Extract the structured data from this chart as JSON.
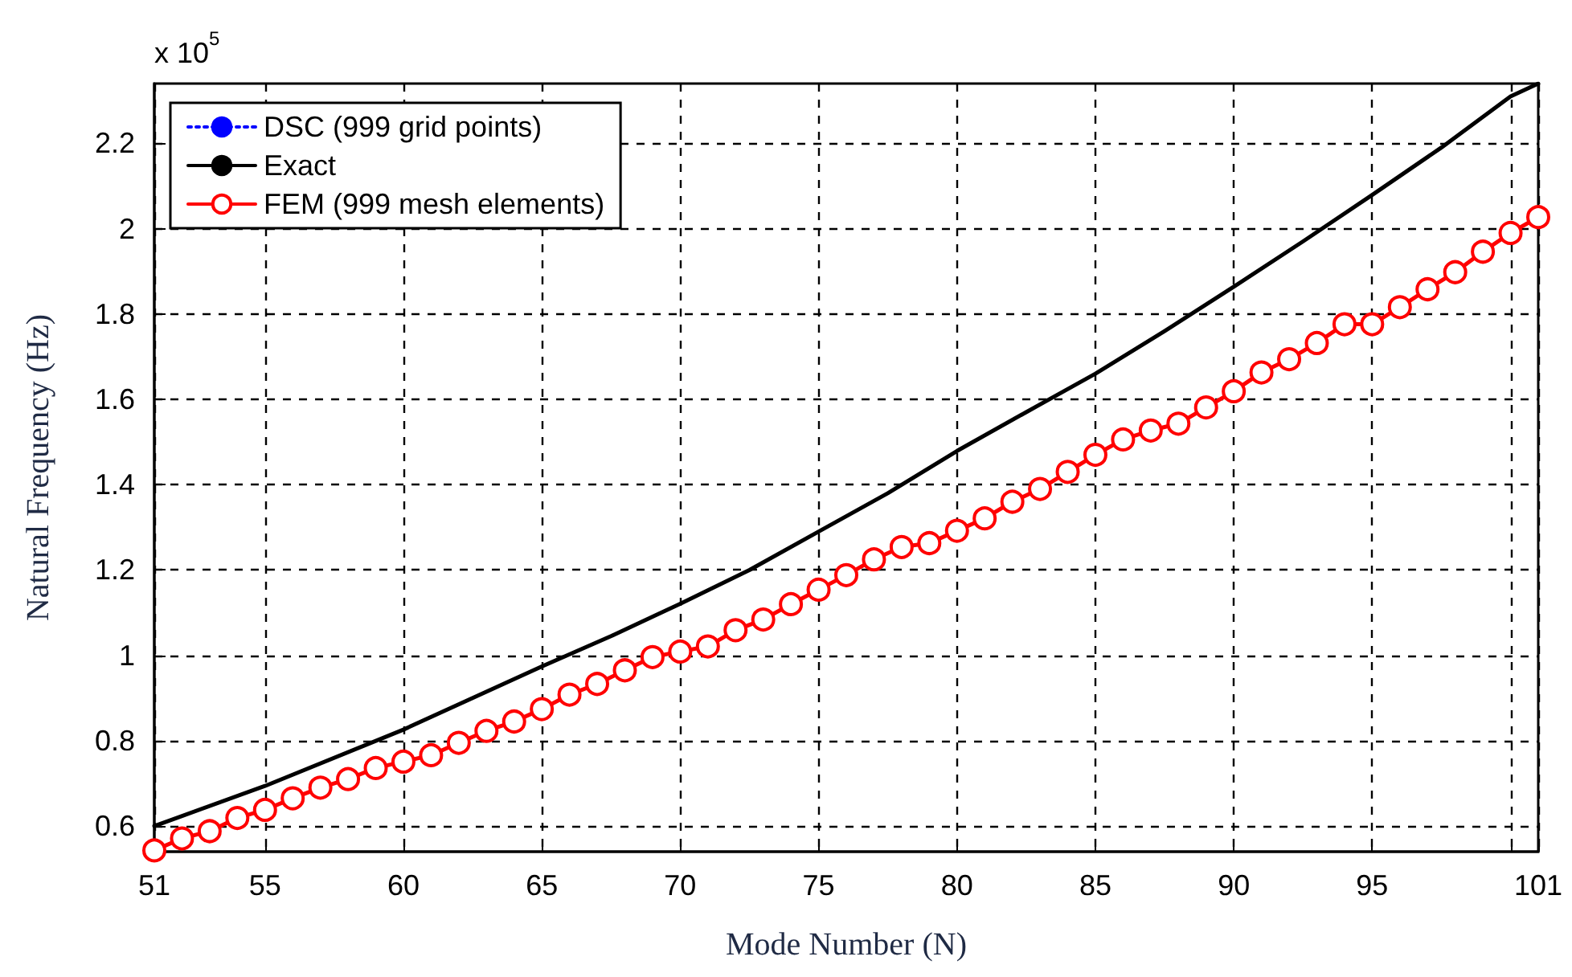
{
  "chart_data": {
    "type": "line",
    "xlabel": "Mode Number (N)",
    "ylabel": "Natural Frequency (Hz)",
    "annotations": [
      "x 10$^{5}$"
    ],
    "x": [
      51,
      52,
      53,
      54,
      55,
      56,
      57,
      58,
      59,
      60,
      61,
      62,
      63,
      64,
      65,
      66,
      67,
      68,
      69,
      70,
      71,
      72,
      73,
      74,
      75,
      76,
      77,
      78,
      79,
      80,
      81,
      82,
      83,
      84,
      85,
      86,
      87,
      88,
      89,
      90,
      91,
      92,
      93,
      94,
      95,
      96,
      97,
      98,
      99,
      100,
      101
    ],
    "series": [
      {
        "name": "DSC (999 grid points)",
        "color": "#0000ff",
        "line_style": "dotted",
        "marker": "none",
        "values": [
          null,
          null,
          null,
          null,
          null,
          null,
          null,
          null,
          null,
          null,
          null,
          null,
          null,
          null,
          null,
          null,
          null,
          null,
          null,
          null,
          null,
          null,
          null,
          null,
          null,
          null,
          null,
          null,
          null,
          null,
          null,
          null,
          null,
          null,
          null,
          null,
          null,
          null,
          null,
          null,
          null,
          null,
          null,
          null,
          null,
          null,
          null,
          null,
          null,
          null,
          null
        ]
      },
      {
        "name": "Exact",
        "color": "#000000",
        "line_style": "solid",
        "marker": "none",
        "x": [
          51,
          55,
          60,
          65,
          67.5,
          70,
          72.5,
          75,
          77.5,
          80,
          82.5,
          85,
          87.5,
          90,
          92.5,
          95,
          97.5,
          100,
          101
        ],
        "values": [
          0.6,
          0.694,
          0.826,
          0.974,
          1.045,
          1.121,
          1.2,
          1.29,
          1.38,
          1.479,
          1.57,
          1.66,
          1.76,
          1.864,
          1.97,
          2.079,
          2.19,
          2.31,
          2.34
        ]
      },
      {
        "name": "FEM (999 mesh elements)",
        "color": "#ff0000",
        "line_style": "solid",
        "marker": "circle",
        "values": [
          0.543,
          0.571,
          0.588,
          0.619,
          0.638,
          0.665,
          0.69,
          0.71,
          0.736,
          0.751,
          0.766,
          0.795,
          0.823,
          0.845,
          0.874,
          0.908,
          0.933,
          0.965,
          0.996,
          1.009,
          1.021,
          1.059,
          1.084,
          1.12,
          1.154,
          1.188,
          1.225,
          1.254,
          1.263,
          1.292,
          1.321,
          1.36,
          1.39,
          1.43,
          1.47,
          1.506,
          1.527,
          1.543,
          1.581,
          1.619,
          1.663,
          1.694,
          1.732,
          1.776,
          1.776,
          1.816,
          1.858,
          1.898,
          1.946,
          1.99,
          2.027
        ]
      }
    ],
    "xlim": [
      51,
      101
    ],
    "xticks": [
      51,
      55,
      60,
      65,
      70,
      75,
      80,
      85,
      90,
      95,
      {
        "value": 100,
        "label": null
      },
      101
    ],
    "ylim": [
      0.54,
      2.34
    ],
    "yticks": [
      0.6,
      0.8,
      1,
      1.2,
      1.4,
      1.6,
      1.8,
      2,
      2.2
    ],
    "grid": true,
    "legend": "top left"
  }
}
